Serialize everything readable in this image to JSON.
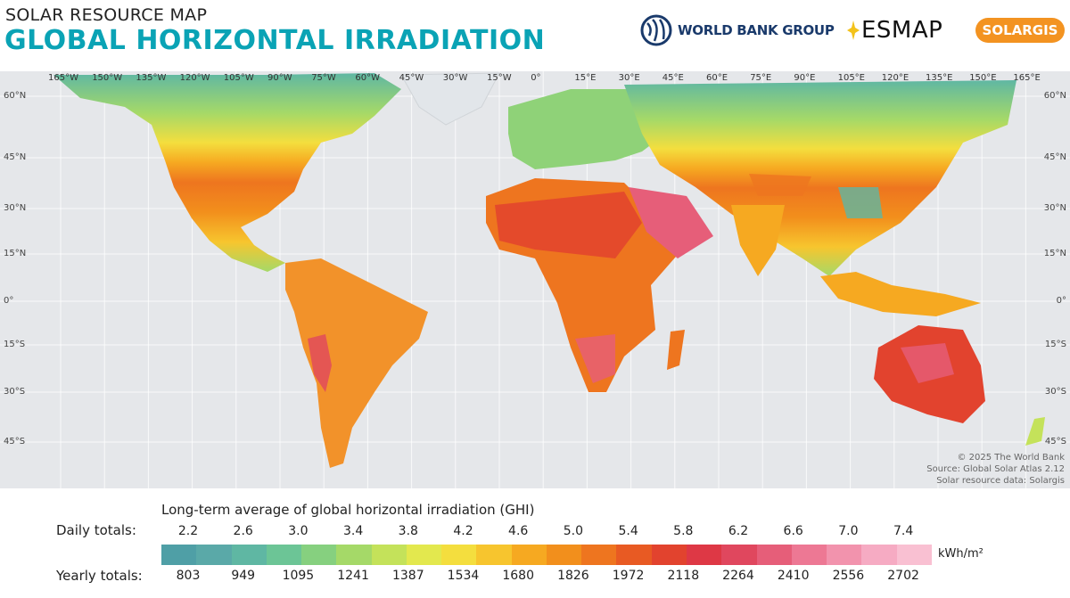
{
  "header": {
    "supertitle": "SOLAR RESOURCE MAP",
    "title": "GLOBAL HORIZONTAL IRRADIATION"
  },
  "logos": {
    "world_bank": "WORLD BANK GROUP",
    "esmap": "ESMAP",
    "solargis": "SOLARGIS"
  },
  "map": {
    "longitude_labels": [
      "165°W",
      "150°W",
      "135°W",
      "120°W",
      "105°W",
      "90°W",
      "75°W",
      "60°W",
      "45°W",
      "30°W",
      "15°W",
      "0°",
      "15°E",
      "30°E",
      "45°E",
      "60°E",
      "75°E",
      "90°E",
      "105°E",
      "120°E",
      "135°E",
      "150°E",
      "165°E"
    ],
    "latitude_labels_left": [
      "60°N",
      "45°N",
      "30°N",
      "15°N",
      "0°",
      "15°S",
      "30°S",
      "45°S"
    ],
    "latitude_labels_right": [
      "60°N",
      "45°N",
      "30°N",
      "15°N",
      "0°",
      "15°S",
      "30°S",
      "45°S"
    ],
    "credits": [
      "© 2025 The World Bank",
      "Source: Global Solar Atlas 2.12",
      "Solar resource data: Solargis"
    ]
  },
  "legend": {
    "title": "Long-term average of global horizontal irradiation (GHI)",
    "daily_label": "Daily totals:",
    "yearly_label": "Yearly totals:",
    "unit": "kWh/m²",
    "daily_values": [
      "2.2",
      "2.6",
      "3.0",
      "3.4",
      "3.8",
      "4.2",
      "4.6",
      "5.0",
      "5.4",
      "5.8",
      "6.2",
      "6.6",
      "7.0",
      "7.4"
    ],
    "yearly_values": [
      "803",
      "949",
      "1095",
      "1241",
      "1387",
      "1534",
      "1680",
      "1826",
      "1972",
      "2118",
      "2264",
      "2410",
      "2556",
      "2702"
    ],
    "colors": [
      "#4f9fa6",
      "#5aa9a8",
      "#5fb7a3",
      "#6cc596",
      "#86d07f",
      "#a5d968",
      "#c4e25a",
      "#e3e84e",
      "#f4de3e",
      "#f7c52e",
      "#f6a921",
      "#f28f1c",
      "#ee751f",
      "#e85a23",
      "#e2432e",
      "#de3845",
      "#e0475e",
      "#e65e79",
      "#ed7894",
      "#f293ad",
      "#f6abc3",
      "#f9c0d2"
    ]
  }
}
